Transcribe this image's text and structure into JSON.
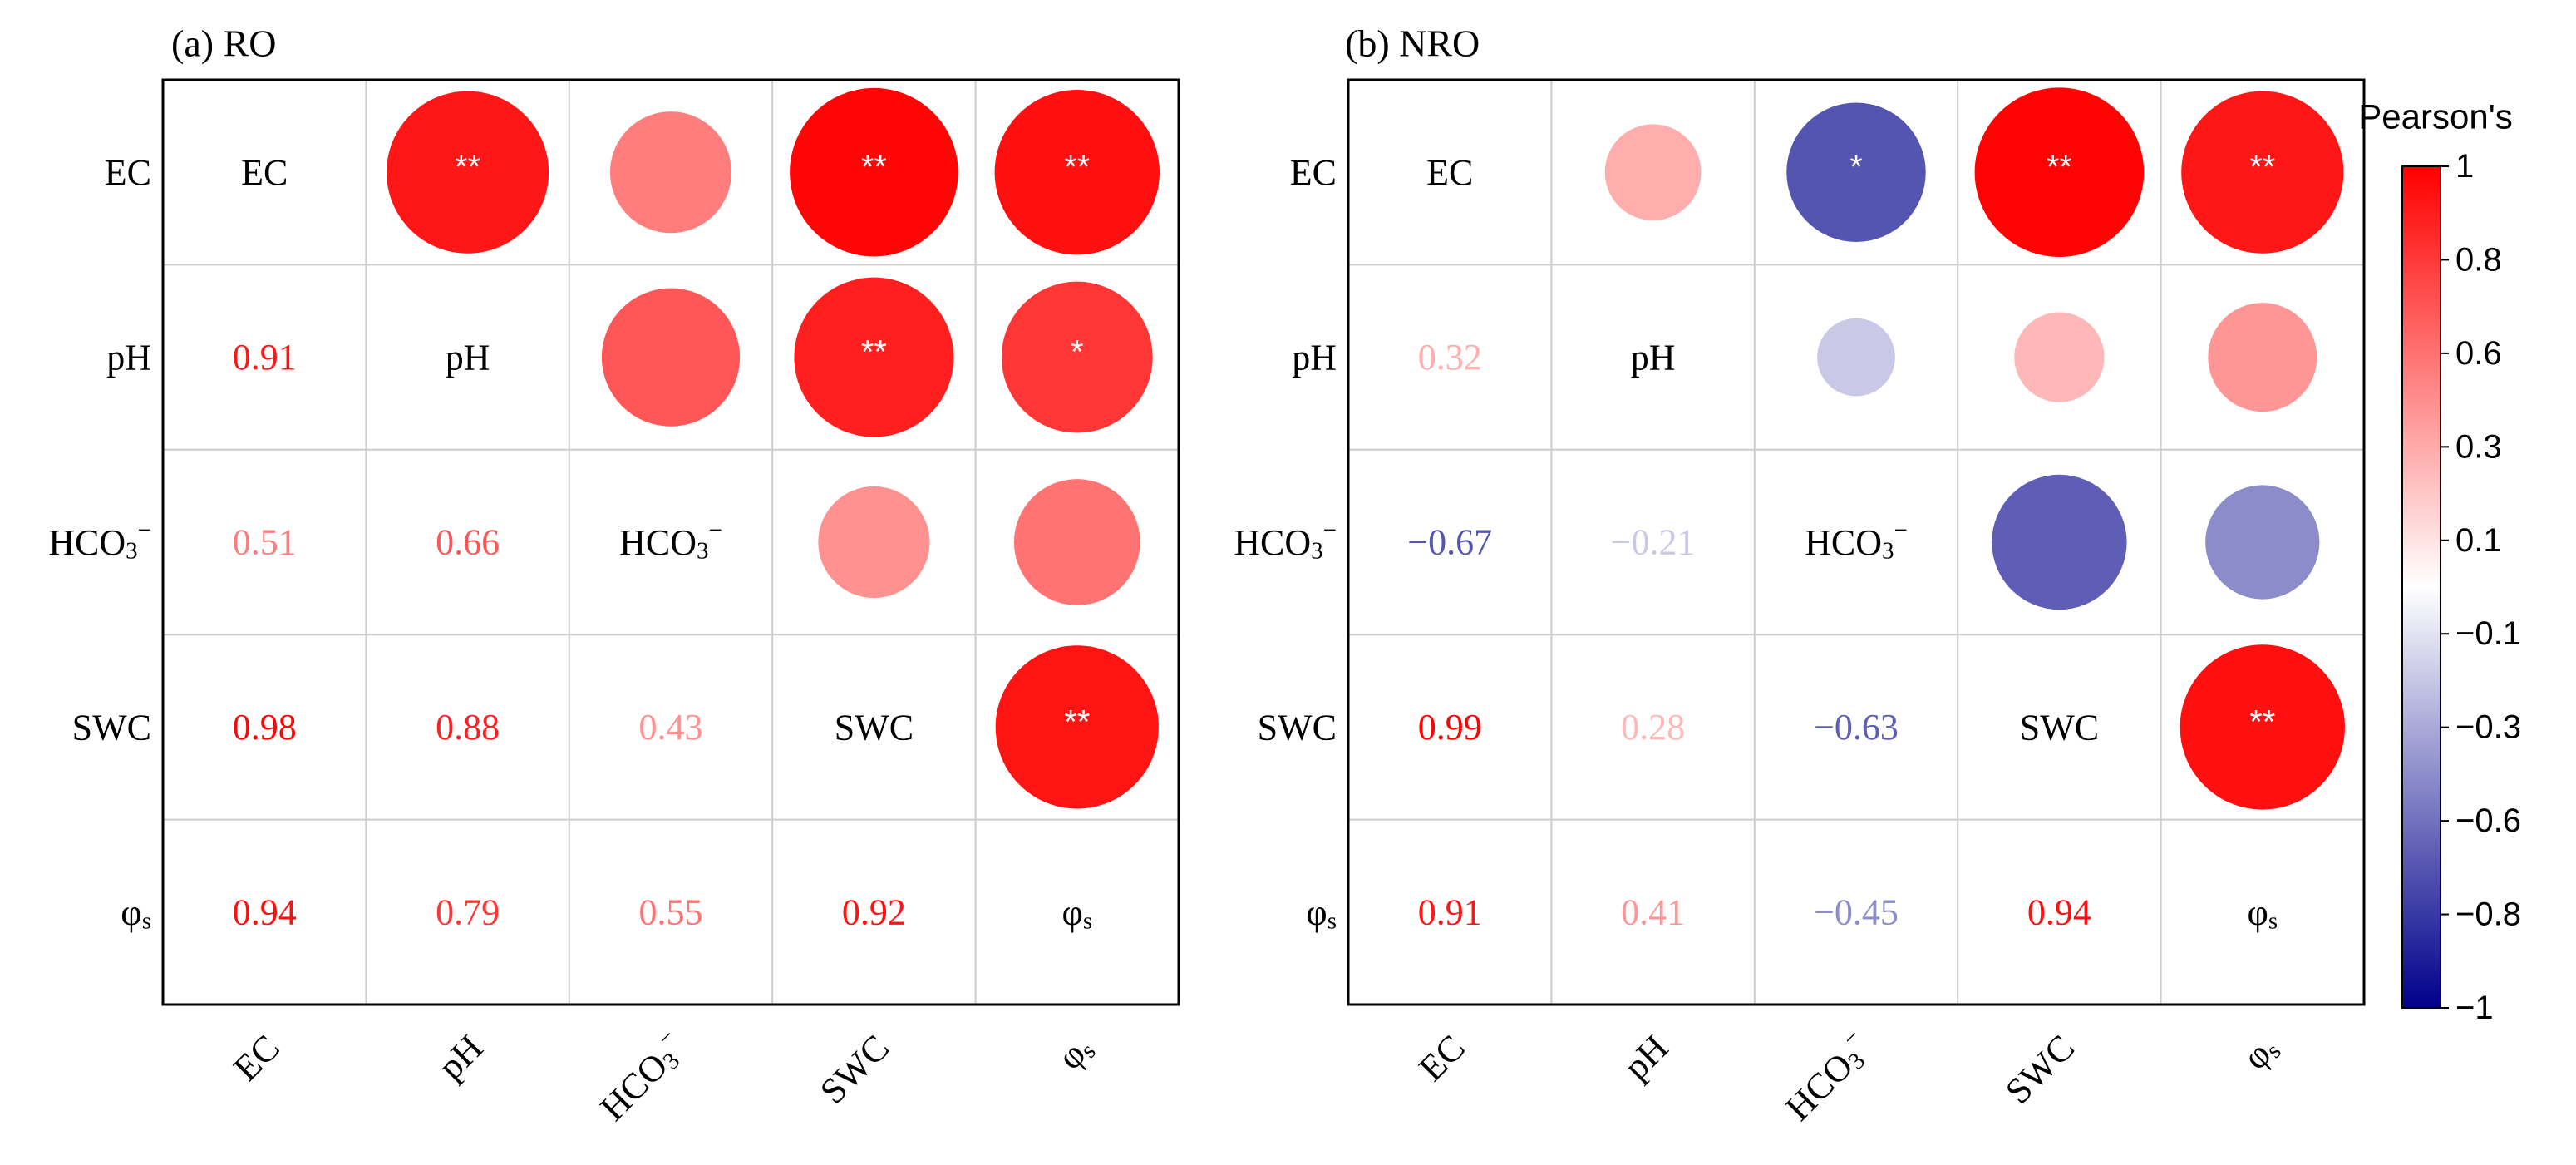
{
  "colors": {
    "negative": "#00008b",
    "neutral": "#ffffff",
    "positive": "#ff0000",
    "frame": "#000000",
    "grid": "#cccccc",
    "star": "#ffffff"
  },
  "colorbar": {
    "title": "Pearson's",
    "ticks": [
      "1",
      "0.8",
      "0.6",
      "0.3",
      "0.1",
      "−0.1",
      "−0.3",
      "−0.6",
      "−0.8",
      "−1"
    ],
    "range": [
      -1,
      1
    ]
  },
  "chart_data": [
    {
      "type": "heatmap",
      "title": "(a) RO",
      "variables": [
        {
          "main": "EC",
          "sub": "",
          "sup": ""
        },
        {
          "main": "pH",
          "sub": "",
          "sup": ""
        },
        {
          "main": "HCO",
          "sub": "3",
          "sup": "−"
        },
        {
          "main": "SWC",
          "sub": "",
          "sup": ""
        },
        {
          "main": "φ",
          "sub": "s",
          "sup": ""
        }
      ],
      "matrix": [
        [
          1.0,
          0.91,
          0.51,
          0.98,
          0.94
        ],
        [
          0.91,
          1.0,
          0.66,
          0.88,
          0.79
        ],
        [
          0.51,
          0.66,
          1.0,
          0.43,
          0.55
        ],
        [
          0.98,
          0.88,
          0.43,
          1.0,
          0.92
        ],
        [
          0.94,
          0.79,
          0.55,
          0.92,
          1.0
        ]
      ],
      "lower_labels": [
        [
          "",
          "",
          "",
          "",
          ""
        ],
        [
          "0.91",
          "",
          "",
          "",
          ""
        ],
        [
          "0.51",
          "0.66",
          "",
          "",
          ""
        ],
        [
          "0.98",
          "0.88",
          "0.43",
          "",
          ""
        ],
        [
          "0.94",
          "0.79",
          "0.55",
          "0.92",
          ""
        ]
      ],
      "significance": [
        [
          "",
          "**",
          "",
          "**",
          "**"
        ],
        [
          "",
          "",
          "",
          "**",
          "*"
        ],
        [
          "",
          "",
          "",
          "",
          ""
        ],
        [
          "",
          "",
          "",
          "",
          "**"
        ],
        [
          "",
          "",
          "",
          "",
          ""
        ]
      ]
    },
    {
      "type": "heatmap",
      "title": "(b) NRO",
      "variables": [
        {
          "main": "EC",
          "sub": "",
          "sup": ""
        },
        {
          "main": "pH",
          "sub": "",
          "sup": ""
        },
        {
          "main": "HCO",
          "sub": "3",
          "sup": "−"
        },
        {
          "main": "SWC",
          "sub": "",
          "sup": ""
        },
        {
          "main": "φ",
          "sub": "s",
          "sup": ""
        }
      ],
      "matrix": [
        [
          1.0,
          0.32,
          -0.67,
          0.99,
          0.91
        ],
        [
          0.32,
          1.0,
          -0.21,
          0.28,
          0.41
        ],
        [
          -0.67,
          -0.21,
          1.0,
          -0.63,
          -0.45
        ],
        [
          0.99,
          0.28,
          -0.63,
          1.0,
          0.94
        ],
        [
          0.91,
          0.41,
          -0.45,
          0.94,
          1.0
        ]
      ],
      "lower_labels": [
        [
          "",
          "",
          "",
          "",
          ""
        ],
        [
          "0.32",
          "",
          "",
          "",
          ""
        ],
        [
          "−0.67",
          "−0.21",
          "",
          "",
          ""
        ],
        [
          "0.99",
          "0.28",
          "−0.63",
          "",
          ""
        ],
        [
          "0.91",
          "0.41",
          "−0.45",
          "0.94",
          ""
        ]
      ],
      "significance": [
        [
          "",
          "",
          "*",
          "**",
          "**"
        ],
        [
          "",
          "",
          "",
          "",
          ""
        ],
        [
          "",
          "",
          "",
          "",
          ""
        ],
        [
          "",
          "",
          "",
          "",
          "**"
        ],
        [
          "",
          "",
          "",
          "",
          ""
        ]
      ]
    }
  ]
}
